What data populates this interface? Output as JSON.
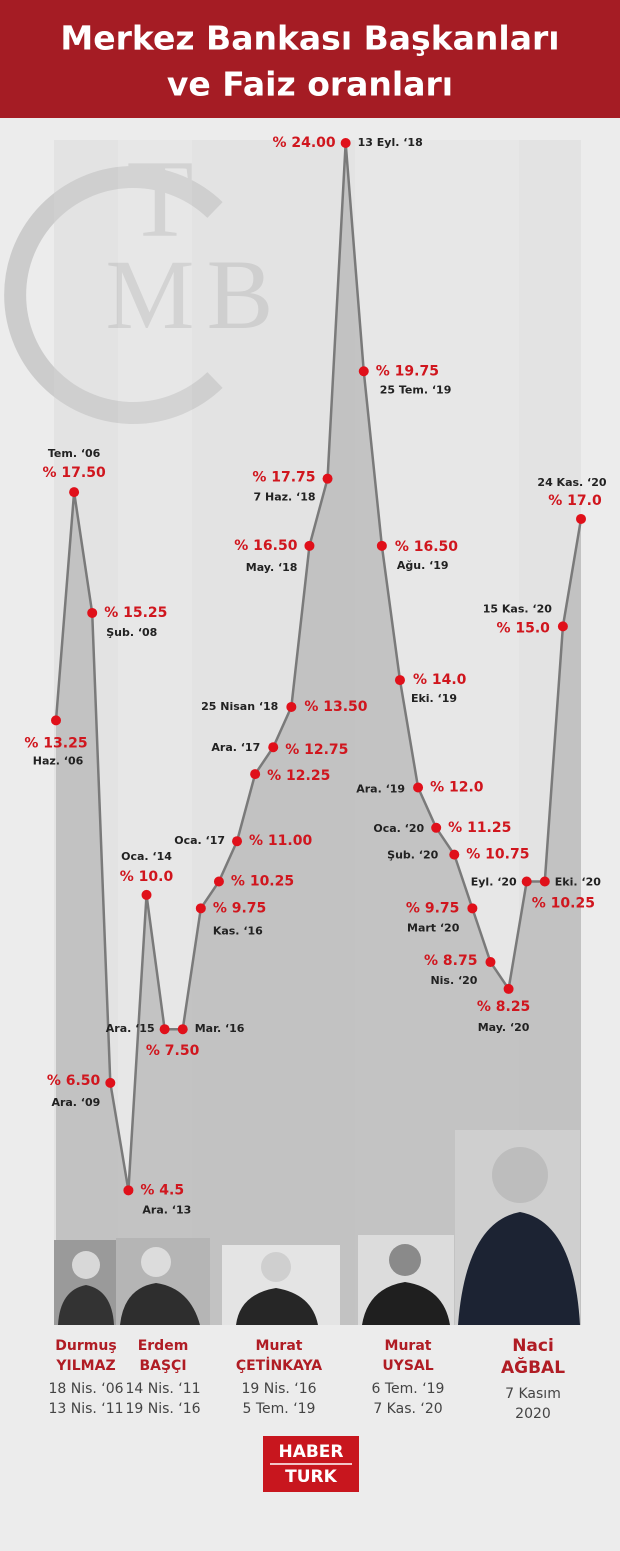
{
  "chart_data": {
    "type": "line",
    "title": [
      "Merkez Bankası Başkanları",
      "ve Faiz oranları"
    ],
    "logo": [
      "T",
      "M",
      "B"
    ],
    "categories": [
      "Haz. ‘06",
      "Tem. ‘06",
      "Şub. ‘08",
      "Ara. ‘09",
      "Ara. ‘13",
      "Oca. ‘14",
      "Ara. ‘15",
      "Mar. ‘16",
      "Kas. ‘16",
      null,
      "Oca. ‘17",
      null,
      "Ara. ‘17",
      "25 Nisan ‘18",
      "May. ‘18",
      "7 Haz. ‘18",
      "13 Eyl. ‘18",
      "25 Tem. ‘19",
      "Ağu. ‘19",
      "Eki. ‘19",
      "Ara. ‘19",
      "Oca. ‘20",
      "Şub. ‘20",
      "Mart ‘20",
      "Nis. ‘20",
      "May. ‘20",
      "Eyl. ‘20",
      "Eki. ‘20",
      "15 Kas. ‘20",
      "24 Kas. ‘20"
    ],
    "values": [
      13.25,
      17.5,
      15.25,
      6.5,
      4.5,
      10.0,
      7.5,
      7.5,
      9.75,
      10.25,
      11.0,
      12.25,
      12.75,
      13.5,
      16.5,
      17.75,
      24.0,
      19.75,
      16.5,
      14.0,
      12.0,
      11.25,
      10.75,
      9.75,
      8.75,
      8.25,
      10.25,
      10.25,
      15.0,
      17.0
    ],
    "value_labels": [
      "% 13.25",
      "% 17.50",
      "% 15.25",
      "% 6.50",
      "% 4.5",
      "% 10.0",
      "% 7.50",
      null,
      "% 9.75",
      "% 10.25",
      "% 11.00",
      "% 12.25",
      "% 12.75",
      "% 13.50",
      "% 16.50",
      "% 17.75",
      "% 24.00",
      "% 19.75",
      "% 16.50",
      "% 14.0",
      "% 12.0",
      "% 11.25",
      "% 10.75",
      "% 9.75",
      "% 8.75",
      "% 8.25",
      null,
      "% 10.25",
      "% 15.0",
      "% 17.0"
    ],
    "color": "#7a7a7a",
    "point_color": "#e0101a",
    "ylim": [
      0,
      24
    ],
    "presidents": [
      {
        "name": [
          "Durmuş",
          "YILMAZ"
        ],
        "dates": [
          "18 Nis. ‘06",
          "13 Nis. ‘11"
        ]
      },
      {
        "name": [
          "Erdem",
          "BAŞÇI"
        ],
        "dates": [
          "14 Nis. ‘11",
          "19 Nis. ‘16"
        ]
      },
      {
        "name": [
          "Murat",
          "ÇETİNKAYA"
        ],
        "dates": [
          "19 Nis. ‘16",
          "5 Tem. ‘19"
        ]
      },
      {
        "name": [
          "Murat",
          "UYSAL"
        ],
        "dates": [
          "6 Tem. ‘19",
          "7 Kas. ‘20"
        ]
      },
      {
        "name": [
          "Naci",
          "AĞBAL"
        ],
        "dates": [
          "7 Kasım",
          "2020"
        ]
      }
    ],
    "footer_logo": [
      "HABER",
      "TURK"
    ]
  }
}
